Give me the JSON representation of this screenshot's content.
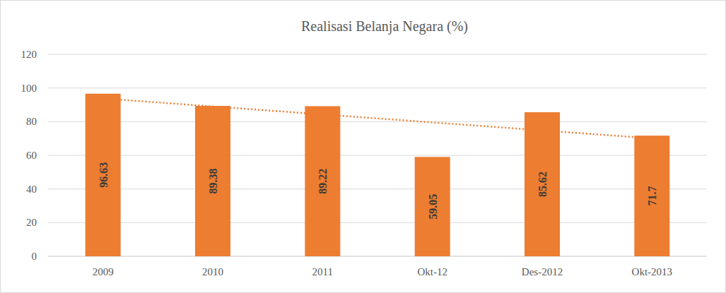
{
  "chart_data": {
    "type": "bar",
    "title": "Realisasi Belanja Negara (%)",
    "categories": [
      "2009",
      "2010",
      "2011",
      "Okt-12",
      "Des-2012",
      "Okt-2013"
    ],
    "values": [
      96.63,
      89.38,
      89.22,
      59.05,
      85.62,
      71.7
    ],
    "color": "#ed7d31",
    "ylim": [
      0,
      120
    ],
    "yticks": [
      0,
      20,
      40,
      60,
      80,
      100,
      120
    ],
    "grid": true,
    "data_labels": true
  }
}
